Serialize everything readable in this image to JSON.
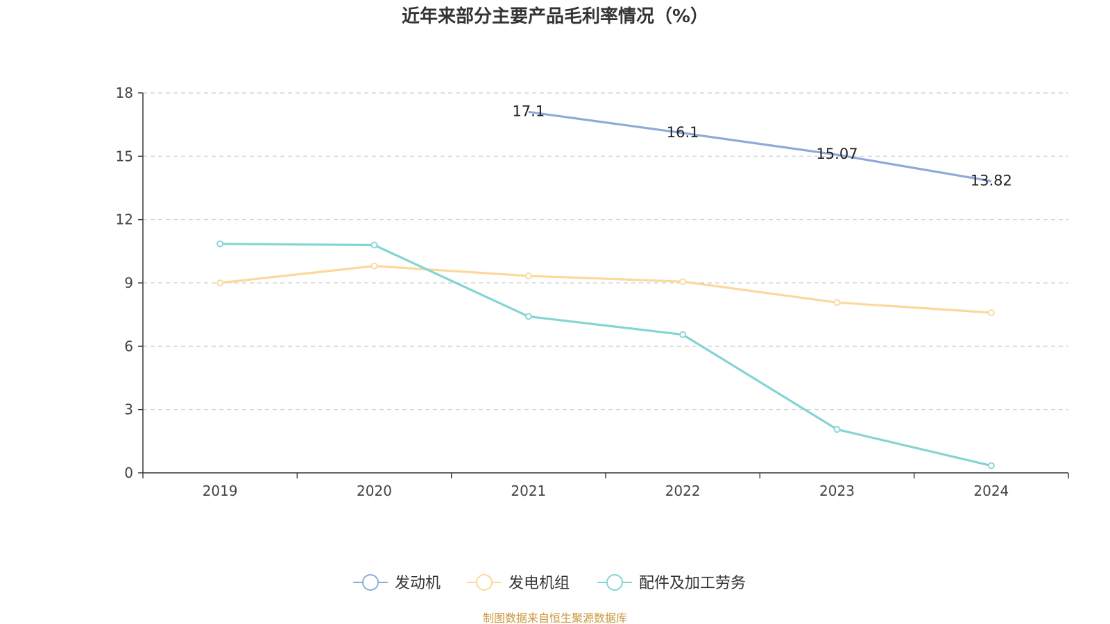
{
  "chart_data": {
    "type": "line",
    "title": "近年来部分主要产品毛利率情况（%）",
    "categories": [
      "2019",
      "2020",
      "2021",
      "2022",
      "2023",
      "2024"
    ],
    "ylim": [
      0,
      18
    ],
    "yticks": [
      0,
      3,
      6,
      9,
      12,
      15,
      18
    ],
    "grid": true,
    "legend_position": "bottom",
    "series": [
      {
        "name": "发动机",
        "color": "#8eaad8",
        "values": [
          null,
          null,
          17.1,
          16.1,
          15.07,
          13.82
        ],
        "data_labels": true
      },
      {
        "name": "发电机组",
        "color": "#fcd89a",
        "values": [
          9.0,
          9.8,
          9.33,
          9.06,
          8.07,
          7.59
        ],
        "data_labels": false
      },
      {
        "name": "配件及加工劳务",
        "color": "#84d4d4",
        "values": [
          10.85,
          10.79,
          7.41,
          6.55,
          2.06,
          0.34
        ],
        "data_labels": false
      }
    ]
  },
  "source_note": "制图数据来自恒生聚源数据库"
}
